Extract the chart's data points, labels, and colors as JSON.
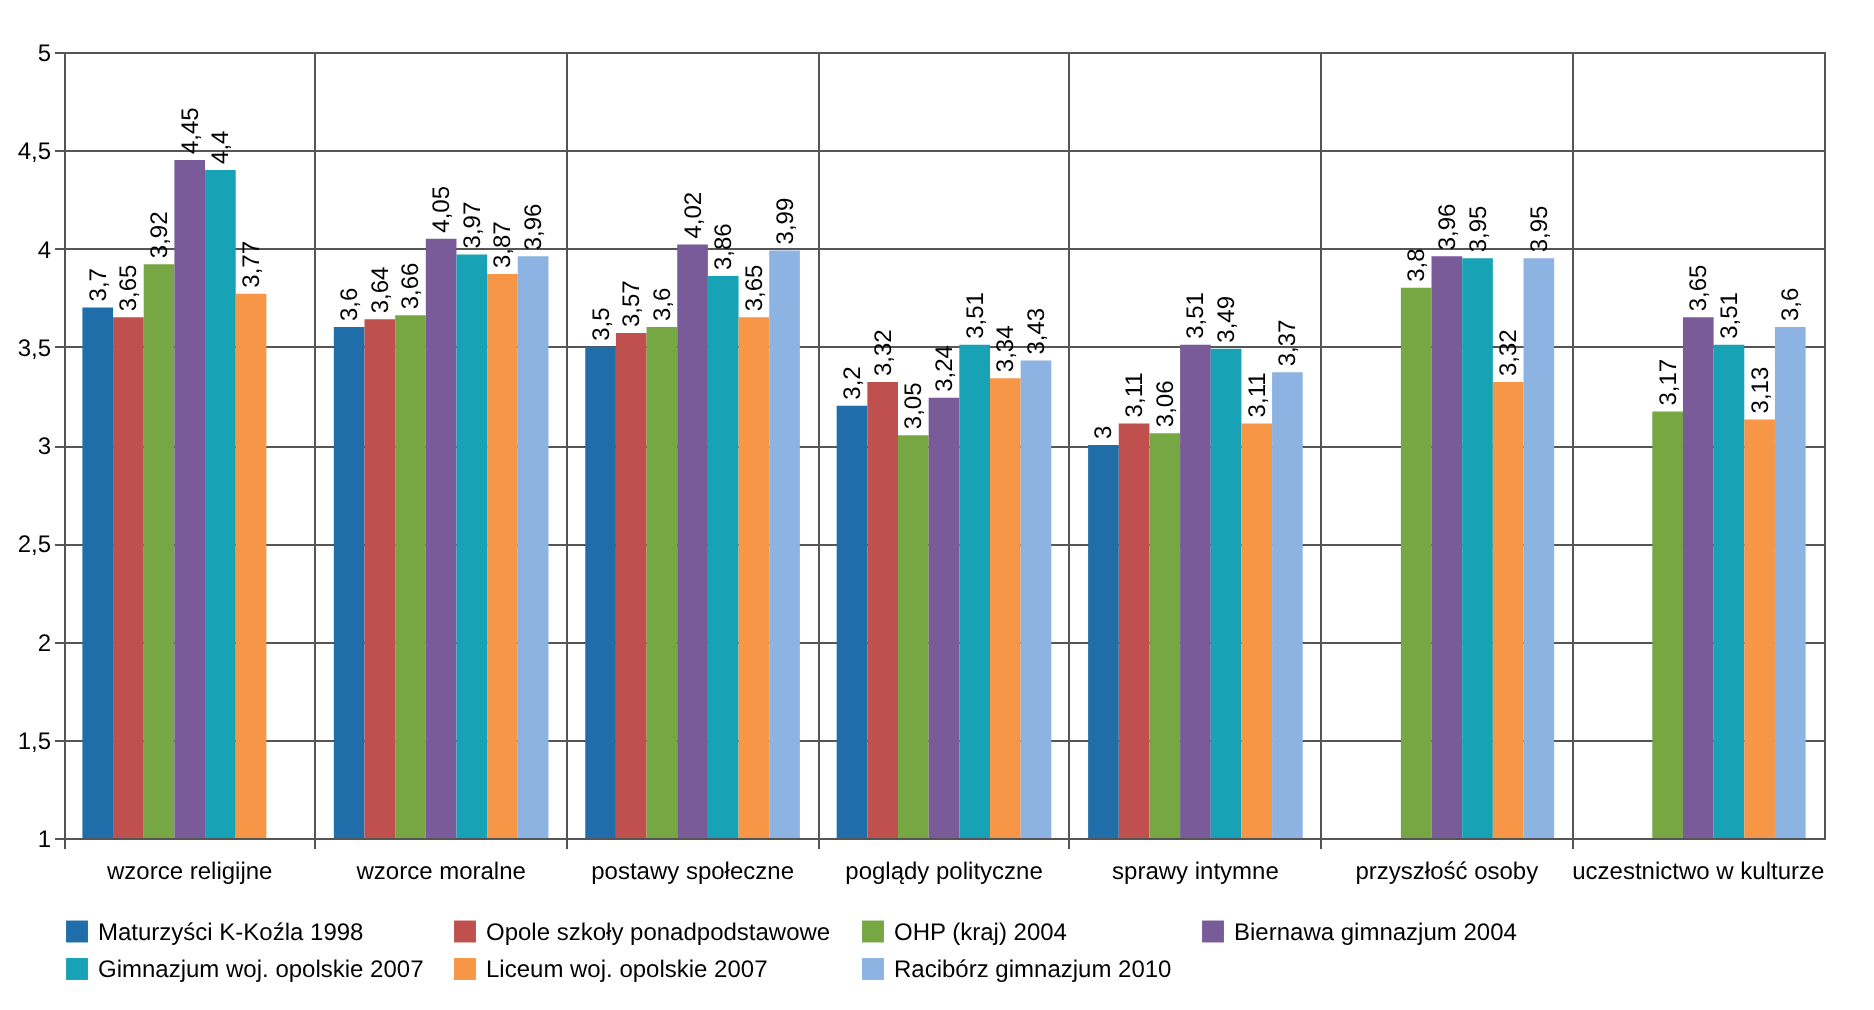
{
  "chart_data": {
    "type": "bar",
    "categories": [
      "wzorce religijne",
      "wzorce moralne",
      "postawy społeczne",
      "poglądy polityczne",
      "sprawy intymne",
      "przyszłość osoby",
      "uczestnictwo w kulturze"
    ],
    "series": [
      {
        "name": "Maturzyści K-Koźla 1998",
        "color": "#1f6eaa",
        "values": [
          3.7,
          3.6,
          3.5,
          3.2,
          3,
          null,
          null
        ],
        "value_labels": [
          "3,7",
          "3,6",
          "3,5",
          "3,2",
          "3",
          null,
          null
        ]
      },
      {
        "name": "Opole szkoły ponadpodstawowe",
        "color": "#c0504d",
        "values": [
          3.65,
          3.64,
          3.57,
          3.32,
          3.11,
          null,
          null
        ],
        "value_labels": [
          "3,65",
          "3,64",
          "3,57",
          "3,32",
          "3,11",
          null,
          null
        ]
      },
      {
        "name": "OHP (kraj) 2004",
        "color": "#77a743",
        "values": [
          3.92,
          3.66,
          3.6,
          3.05,
          3.06,
          3.8,
          3.17
        ],
        "value_labels": [
          "3,92",
          "3,66",
          "3,6",
          "3,05",
          "3,06",
          "3,8",
          "3,17"
        ]
      },
      {
        "name": "Biernawa gimnazjum 2004",
        "color": "#7a5b9a",
        "values": [
          4.45,
          4.05,
          4.02,
          3.24,
          3.51,
          3.96,
          3.65
        ],
        "value_labels": [
          "4,45",
          "4,05",
          "4,02",
          "3,24",
          "3,51",
          "3,96",
          "3,65"
        ]
      },
      {
        "name": "Gimnazjum woj. opolskie 2007",
        "color": "#17a3b5",
        "values": [
          4.4,
          3.97,
          3.86,
          3.51,
          3.49,
          3.95,
          3.51
        ],
        "value_labels": [
          "4,4",
          "3,97",
          "3,86",
          "3,51",
          "3,49",
          "3,95",
          "3,51"
        ]
      },
      {
        "name": "Liceum woj. opolskie 2007",
        "color": "#f79646",
        "values": [
          3.77,
          3.87,
          3.65,
          3.34,
          3.11,
          3.32,
          3.13
        ],
        "value_labels": [
          "3,77",
          "3,87",
          "3,65",
          "3,34",
          "3,11",
          "3,32",
          "3,13"
        ]
      },
      {
        "name": "Racibórz gimnazjum 2010",
        "color": "#8db3e2",
        "values": [
          null,
          3.96,
          3.99,
          3.43,
          3.37,
          3.95,
          3.6
        ],
        "value_labels": [
          null,
          "3,96",
          "3,99",
          "3,43",
          "3,37",
          "3,95",
          "3,6"
        ]
      }
    ],
    "ylim": [
      1,
      5
    ],
    "yticks": [
      1,
      {
        "value": 1.5,
        "label": "1,5"
      },
      2,
      {
        "value": 2.5,
        "label": "2,5"
      },
      3,
      {
        "value": 3.5,
        "label": "3,5"
      },
      4,
      {
        "value": 4.5,
        "label": "4,5"
      },
      5
    ],
    "grid": true,
    "legend": "bottom"
  }
}
